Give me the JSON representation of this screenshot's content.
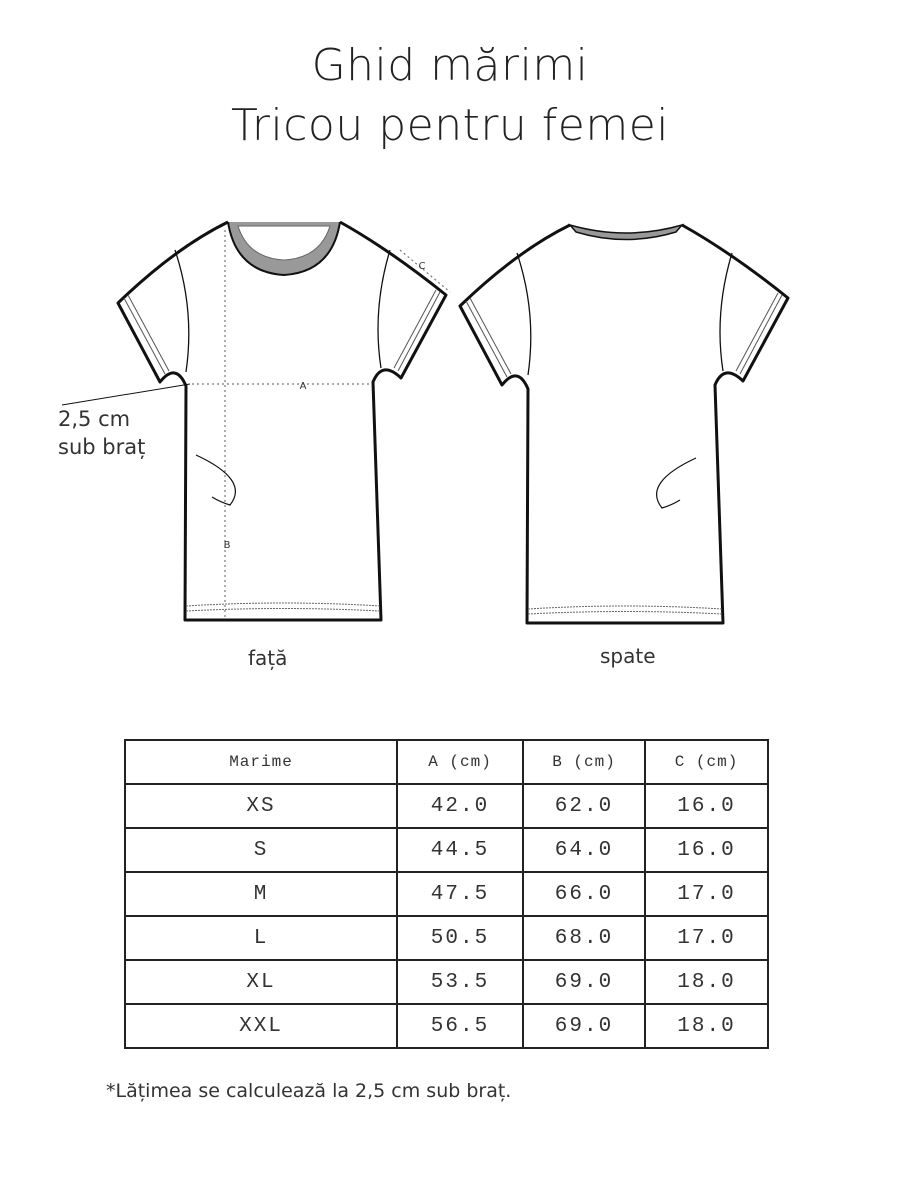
{
  "title": {
    "line1": "Ghid mărimi",
    "line2": "Tricou pentru femei"
  },
  "diagram": {
    "front_label": "față",
    "back_label": "spate",
    "note_line1": "2,5 cm",
    "note_line2": "sub braț",
    "measure_a": "A",
    "measure_b": "B",
    "measure_c": "C"
  },
  "table": {
    "headers": [
      "Marime",
      "A (cm)",
      "B (cm)",
      "C (cm)"
    ],
    "rows": [
      [
        "XS",
        "42.0",
        "62.0",
        "16.0"
      ],
      [
        "S",
        "44.5",
        "64.0",
        "16.0"
      ],
      [
        "M",
        "47.5",
        "66.0",
        "17.0"
      ],
      [
        "L",
        "50.5",
        "68.0",
        "17.0"
      ],
      [
        "XL",
        "53.5",
        "69.0",
        "18.0"
      ],
      [
        "XXL",
        "56.5",
        "69.0",
        "18.0"
      ]
    ]
  },
  "footnote": "*Lățimea se calculează la 2,5 cm sub braț."
}
